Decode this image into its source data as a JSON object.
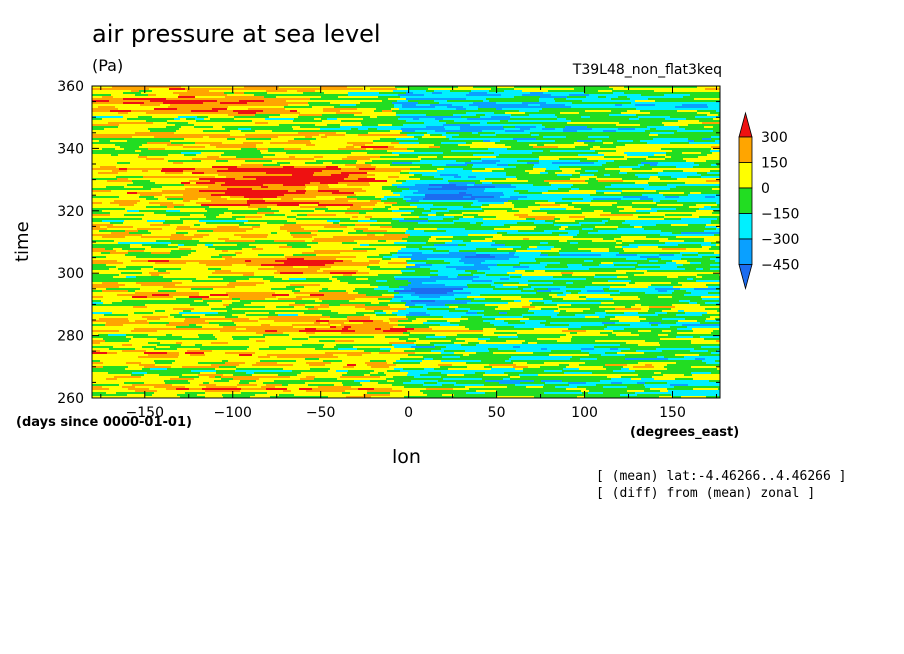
{
  "chart_data": {
    "type": "heatmap",
    "title": "air pressure at sea level",
    "units": "(Pa)",
    "run_id": "T39L48_non_flat3keq",
    "xlabel": "lon",
    "ylabel": "time",
    "x_units": "(degrees_east)",
    "y_units": "(days since 0000-01-01)",
    "xlim": [
      -180,
      177
    ],
    "ylim": [
      260,
      360
    ],
    "x_ticks": [
      -150,
      -100,
      -50,
      0,
      50,
      100,
      150
    ],
    "y_ticks": [
      260,
      280,
      300,
      320,
      340,
      360
    ],
    "colorbar": {
      "levels": [
        -450,
        -300,
        -150,
        0,
        150,
        300
      ],
      "labels": [
        "300",
        "150",
        "0",
        "-150",
        "-300",
        "-450"
      ],
      "colors": [
        "#1c6cf0",
        "#0aa0ff",
        "#00f0ff",
        "#22dd22",
        "#ffff00",
        "#ffa500",
        "#ee1111"
      ]
    },
    "notes": [
      "[ (mean) lat:-4.46266..4.46266 ]",
      "[ (diff) from (mean) zonal ]"
    ]
  }
}
